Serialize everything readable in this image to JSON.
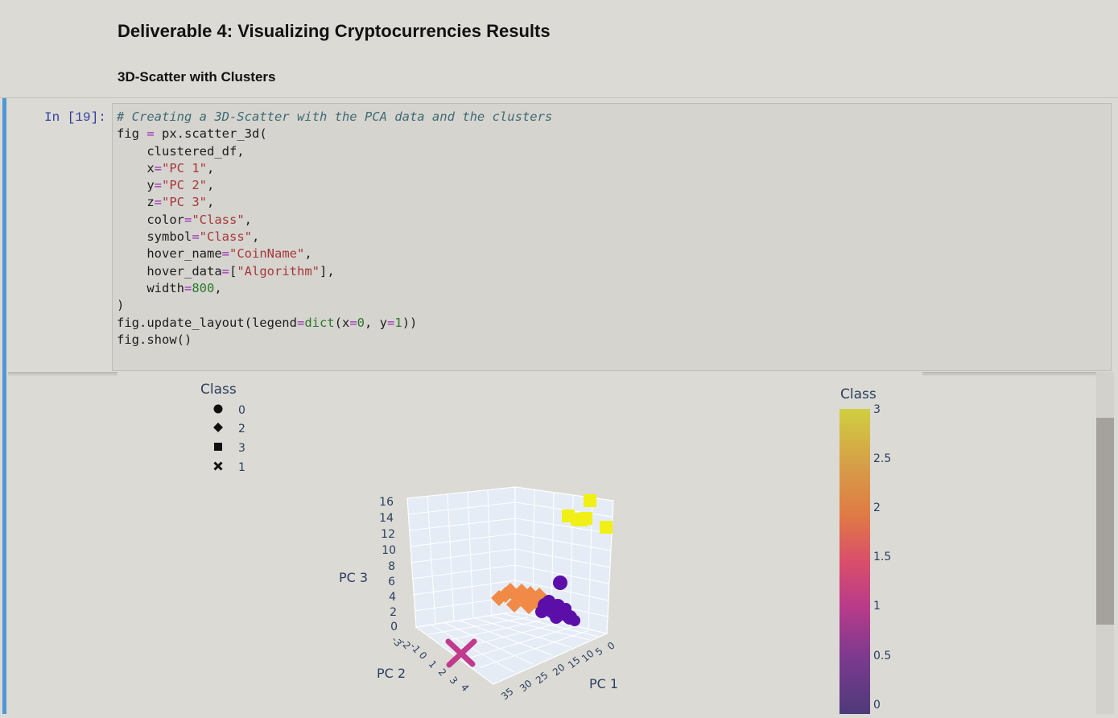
{
  "markdown": {
    "title": "Deliverable 4: Visualizing Cryptocurrencies Results",
    "subtitle": "3D-Scatter with Clusters"
  },
  "cell": {
    "prompt": "In [19]:",
    "comment": "# Creating a 3D-Scatter with the PCA data and the clusters"
  },
  "chart_data": {
    "type": "scatter",
    "legend": {
      "title": "Class",
      "entries": [
        {
          "symbol": "circle",
          "label": "0"
        },
        {
          "symbol": "diamond",
          "label": "2"
        },
        {
          "symbol": "square",
          "label": "3"
        },
        {
          "symbol": "x",
          "label": "1"
        }
      ],
      "placement": "top-left"
    },
    "colorbar": {
      "title": "Class",
      "range": [
        0,
        3
      ],
      "ticks": [
        "3",
        "2.5",
        "2",
        "1.5",
        "1",
        "0.5",
        "0"
      ],
      "colors": [
        "#cfcf40",
        "#d79a48",
        "#e07a45",
        "#d94e6a",
        "#b83b8a",
        "#7a3a8e",
        "#4e3a7a"
      ]
    },
    "axes": {
      "x": {
        "label": "PC 1",
        "ticks": [
          "35",
          "30",
          "25",
          "20",
          "15",
          "10",
          "5",
          "0"
        ]
      },
      "y": {
        "label": "PC 2",
        "ticks": [
          "-3",
          "-2",
          "-1",
          "0",
          "1",
          "2",
          "3",
          "4"
        ]
      },
      "z": {
        "label": "PC 3",
        "ticks": [
          "16",
          "14",
          "12",
          "10",
          "8",
          "6",
          "4",
          "2",
          "0"
        ]
      }
    },
    "series": [
      {
        "name": "0",
        "color": "#5b0fa8",
        "symbol": "circle"
      },
      {
        "name": "2",
        "color": "#f08a46",
        "symbol": "diamond"
      },
      {
        "name": "3",
        "color": "#f0f016",
        "symbol": "square"
      },
      {
        "name": "1",
        "color": "#c23a8c",
        "symbol": "x"
      }
    ]
  }
}
